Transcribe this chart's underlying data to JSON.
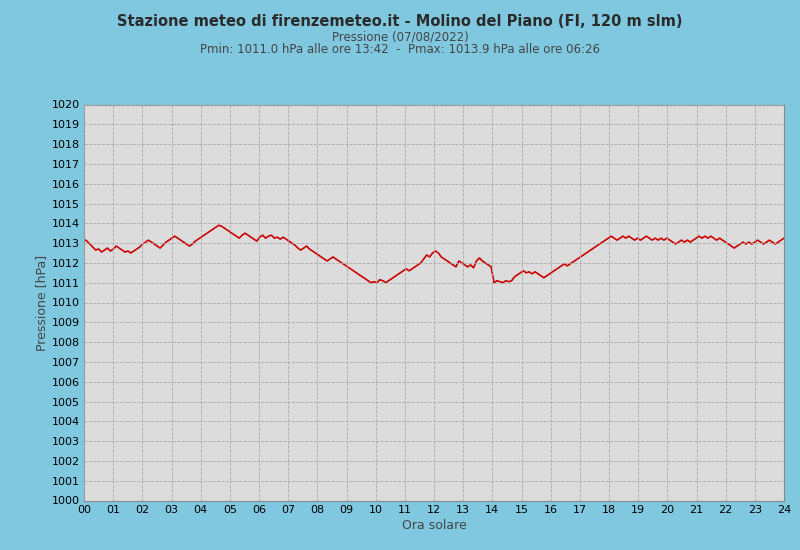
{
  "title1": "Stazione meteo di firenzemeteo.it - Molino del Piano (FI, 120 m slm)",
  "title2": "Pressione (07/08/2022)",
  "title3": "Pmin: 1011.0 hPa alle ore 13:42  -  Pmax: 1013.9 hPa alle ore 06:26",
  "xlabel": "Ora solare",
  "ylabel": "Pressione [hPa]",
  "ylim": [
    1000,
    1020
  ],
  "xlim": [
    0,
    24
  ],
  "yticks": [
    1000,
    1001,
    1002,
    1003,
    1004,
    1005,
    1006,
    1007,
    1008,
    1009,
    1010,
    1011,
    1012,
    1013,
    1014,
    1015,
    1016,
    1017,
    1018,
    1019,
    1020
  ],
  "xticks": [
    0,
    1,
    2,
    3,
    4,
    5,
    6,
    7,
    8,
    9,
    10,
    11,
    12,
    13,
    14,
    15,
    16,
    17,
    18,
    19,
    20,
    21,
    22,
    23,
    24
  ],
  "xticklabels": [
    "00",
    "01",
    "02",
    "03",
    "04",
    "05",
    "06",
    "07",
    "08",
    "09",
    "10",
    "11",
    "12",
    "13",
    "14",
    "15",
    "16",
    "17",
    "18",
    "19",
    "20",
    "21",
    "22",
    "23",
    "24"
  ],
  "line_color": "#cc0000",
  "line_width": 1.2,
  "bg_color_plot": "#dcdcdc",
  "bg_color_fig": "#80c8e0",
  "title1_color": "#2a2a2a",
  "title2_color": "#444444",
  "grid_color": "#aaaaaa",
  "pressure_data": [
    1013.2,
    1013.1,
    1012.95,
    1012.8,
    1012.65,
    1012.7,
    1012.55,
    1012.65,
    1012.75,
    1012.6,
    1012.7,
    1012.85,
    1012.75,
    1012.65,
    1012.55,
    1012.6,
    1012.5,
    1012.6,
    1012.7,
    1012.8,
    1012.95,
    1013.05,
    1013.15,
    1013.05,
    1012.95,
    1012.85,
    1012.75,
    1012.9,
    1013.05,
    1013.15,
    1013.25,
    1013.35,
    1013.25,
    1013.15,
    1013.05,
    1012.95,
    1012.85,
    1012.95,
    1013.1,
    1013.2,
    1013.3,
    1013.4,
    1013.5,
    1013.6,
    1013.7,
    1013.8,
    1013.9,
    1013.85,
    1013.75,
    1013.65,
    1013.55,
    1013.45,
    1013.35,
    1013.25,
    1013.4,
    1013.5,
    1013.4,
    1013.3,
    1013.2,
    1013.1,
    1013.3,
    1013.4,
    1013.25,
    1013.35,
    1013.4,
    1013.25,
    1013.3,
    1013.2,
    1013.3,
    1013.2,
    1013.1,
    1013.0,
    1012.9,
    1012.75,
    1012.65,
    1012.75,
    1012.85,
    1012.7,
    1012.6,
    1012.5,
    1012.4,
    1012.3,
    1012.2,
    1012.1,
    1012.2,
    1012.3,
    1012.2,
    1012.1,
    1012.0,
    1011.9,
    1011.8,
    1011.7,
    1011.6,
    1011.5,
    1011.4,
    1011.3,
    1011.2,
    1011.1,
    1011.0,
    1011.05,
    1011.0,
    1011.15,
    1011.1,
    1011.0,
    1011.1,
    1011.2,
    1011.3,
    1011.4,
    1011.5,
    1011.6,
    1011.7,
    1011.6,
    1011.7,
    1011.8,
    1011.9,
    1012.0,
    1012.2,
    1012.4,
    1012.3,
    1012.5,
    1012.6,
    1012.5,
    1012.3,
    1012.2,
    1012.1,
    1012.0,
    1011.9,
    1011.8,
    1012.1,
    1012.0,
    1011.9,
    1011.8,
    1011.9,
    1011.75,
    1012.1,
    1012.25,
    1012.1,
    1012.0,
    1011.9,
    1011.8,
    1011.0,
    1011.1,
    1011.05,
    1011.0,
    1011.1,
    1011.05,
    1011.1,
    1011.3,
    1011.4,
    1011.5,
    1011.6,
    1011.5,
    1011.55,
    1011.45,
    1011.55,
    1011.45,
    1011.35,
    1011.25,
    1011.35,
    1011.45,
    1011.55,
    1011.65,
    1011.75,
    1011.85,
    1011.95,
    1011.85,
    1011.95,
    1012.05,
    1012.15,
    1012.25,
    1012.35,
    1012.45,
    1012.55,
    1012.65,
    1012.75,
    1012.85,
    1012.95,
    1013.05,
    1013.15,
    1013.25,
    1013.35,
    1013.25,
    1013.15,
    1013.25,
    1013.35,
    1013.25,
    1013.35,
    1013.25,
    1013.15,
    1013.25,
    1013.15,
    1013.25,
    1013.35,
    1013.25,
    1013.15,
    1013.25,
    1013.15,
    1013.25,
    1013.15,
    1013.25,
    1013.15,
    1013.05,
    1012.95,
    1013.05,
    1013.15,
    1013.05,
    1013.15,
    1013.05,
    1013.15,
    1013.25,
    1013.35,
    1013.25,
    1013.35,
    1013.25,
    1013.35,
    1013.25,
    1013.15,
    1013.25,
    1013.15,
    1013.05,
    1012.95,
    1012.85,
    1012.75,
    1012.85,
    1012.95,
    1013.05,
    1012.95,
    1013.05,
    1012.95,
    1013.05,
    1013.15,
    1013.05,
    1012.95,
    1013.05,
    1013.15,
    1013.05,
    1012.95,
    1013.05,
    1013.15,
    1013.25
  ]
}
